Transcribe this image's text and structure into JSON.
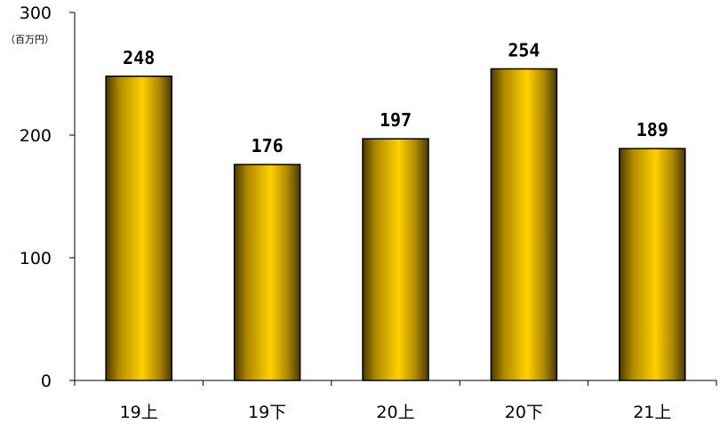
{
  "chart_data": {
    "type": "bar",
    "title": "",
    "xlabel": "",
    "ylabel": "",
    "unit_label": "（百万円）",
    "categories": [
      "19上",
      "19下",
      "20上",
      "20下",
      "21上"
    ],
    "values": [
      248,
      176,
      197,
      254,
      189
    ],
    "data_labels": [
      "248",
      "176",
      "197",
      "254",
      "189"
    ],
    "ylim": [
      0,
      300
    ],
    "yticks": [
      0,
      100,
      200,
      300
    ],
    "ytick_labels": [
      "0",
      "100",
      "200",
      "300"
    ],
    "grid": false,
    "legend": "none"
  },
  "colors": {
    "bar_edge": "#000000",
    "bar_dark": "#4a3a00",
    "bar_mid": "#b08a00",
    "bar_light": "#ffd000",
    "axis": "#000000"
  }
}
